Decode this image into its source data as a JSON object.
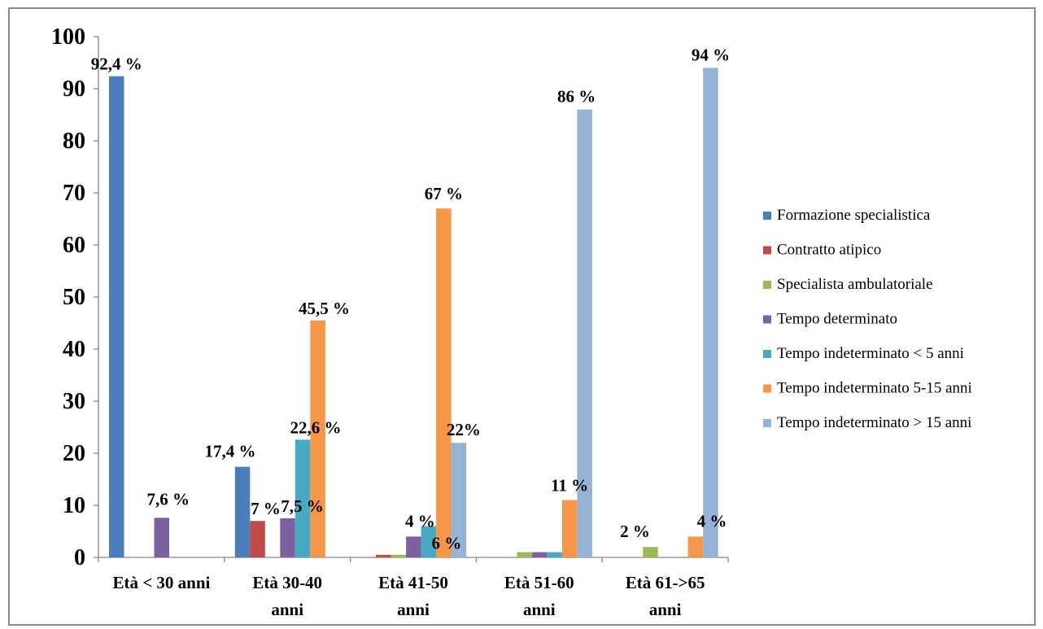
{
  "chart_data": {
    "type": "bar",
    "title": "",
    "xlabel": "",
    "ylabel": "",
    "ylim": [
      0,
      100
    ],
    "yticks": [
      0,
      10,
      20,
      30,
      40,
      50,
      60,
      70,
      80,
      90,
      100
    ],
    "grid": false,
    "legend_position": "right",
    "categories": [
      [
        "Età < 30 anni"
      ],
      [
        "Età 30-40",
        "anni"
      ],
      [
        "Età 41-50",
        "anni"
      ],
      [
        "Età 51-60",
        "anni"
      ],
      [
        "Età 61->65",
        "anni"
      ]
    ],
    "series": [
      {
        "name": "Formazione specialistica",
        "color": "#4a7ebb",
        "values": [
          92.4,
          17.4,
          0,
          0,
          0
        ]
      },
      {
        "name": "Contratto atipico",
        "color": "#be4b48",
        "values": [
          0,
          7,
          0.5,
          0,
          0
        ]
      },
      {
        "name": "Specialista ambulatoriale",
        "color": "#98b954",
        "values": [
          0,
          0,
          0.5,
          1,
          2
        ]
      },
      {
        "name": "Tempo determinato",
        "color": "#7d60a0",
        "values": [
          7.6,
          7.5,
          4,
          1,
          0
        ]
      },
      {
        "name": "Tempo indeterminato < 5 anni",
        "color": "#46aac5",
        "values": [
          0,
          22.6,
          6,
          1,
          0
        ]
      },
      {
        "name": "Tempo indeterminato 5-15 anni",
        "color": "#f79646",
        "values": [
          0,
          45.5,
          67,
          11,
          4
        ]
      },
      {
        "name": "Tempo indeterminato > 15 anni",
        "color": "#95b3d7",
        "values": [
          0,
          0,
          22,
          86,
          94
        ]
      }
    ],
    "data_labels": [
      {
        "text": "92,4 %",
        "category": 0,
        "series": 0
      },
      {
        "text": "7,6 %",
        "category": 0,
        "series": 3
      },
      {
        "text": "17,4 %",
        "category": 1,
        "series": 0
      },
      {
        "text": "7 %",
        "category": 1,
        "series": 1
      },
      {
        "text": "7,5 %",
        "category": 1,
        "series": 3
      },
      {
        "text": "22,6 %",
        "category": 1,
        "series": 4
      },
      {
        "text": "45,5 %",
        "category": 1,
        "series": 5
      },
      {
        "text": "4 %",
        "category": 2,
        "series": 3
      },
      {
        "text": "6 %",
        "category": 2,
        "series": 4
      },
      {
        "text": "67 %",
        "category": 2,
        "series": 5
      },
      {
        "text": "22%",
        "category": 2,
        "series": 6
      },
      {
        "text": "11 %",
        "category": 3,
        "series": 5
      },
      {
        "text": "86 %",
        "category": 3,
        "series": 6
      },
      {
        "text": "2 %",
        "category": 4,
        "series": 2
      },
      {
        "text": "4 %",
        "category": 4,
        "series": 5
      },
      {
        "text": "94 %",
        "category": 4,
        "series": 6
      }
    ]
  }
}
